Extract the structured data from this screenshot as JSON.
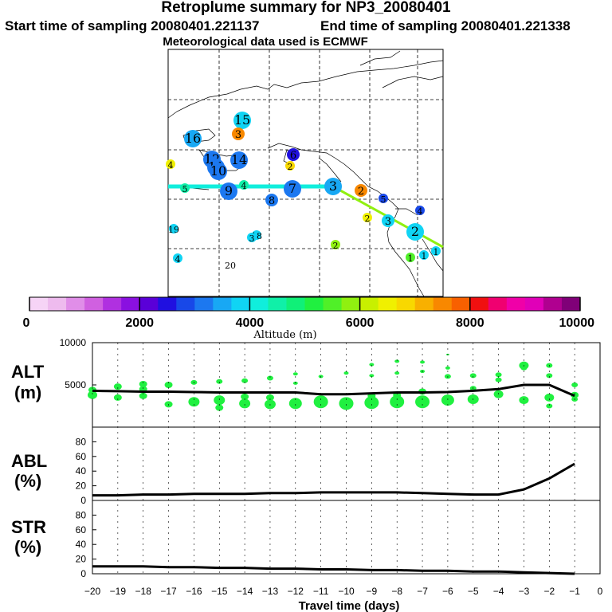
{
  "header": {
    "title": "Retroplume summary for NP3_20080401",
    "start_label": "Start time of sampling 20080401.221137",
    "end_label": "End time of sampling 20080401.221338",
    "met_label": "Meteorological data used is ECMWF"
  },
  "colorbar": {
    "label": "Altitude (m)",
    "ticks": [
      "0",
      "2000",
      "4000",
      "6000",
      "8000",
      "10000"
    ],
    "colors": [
      "#f6d4f6",
      "#eebbee",
      "#e08ee8",
      "#d060e0",
      "#b030e0",
      "#8a10e0",
      "#5a00d8",
      "#2010e0",
      "#1848e8",
      "#1c78f0",
      "#18a8f4",
      "#10d4f4",
      "#10eedc",
      "#10f0a8",
      "#10f078",
      "#20f040",
      "#50f028",
      "#90f010",
      "#c8f000",
      "#f0f000",
      "#f8d800",
      "#f8b000",
      "#f88800",
      "#f86000",
      "#f01010",
      "#f00070",
      "#f000a8",
      "#e000b8",
      "#b00090",
      "#800078"
    ]
  },
  "map": {
    "markers": [
      {
        "lab": "15",
        "size": "large",
        "color": "#10d4f4"
      },
      {
        "lab": "3",
        "size": "medium",
        "color": "#f88800"
      },
      {
        "lab": "16",
        "size": "large",
        "color": "#18a8f4"
      },
      {
        "lab": "4",
        "size": "small",
        "color": "#f0f000"
      },
      {
        "lab": "12",
        "size": "large",
        "color": "#1c78f0"
      },
      {
        "lab": "11",
        "size": "large",
        "color": "#1c78f0"
      },
      {
        "lab": "14",
        "size": "large",
        "color": "#1c78f0"
      },
      {
        "lab": "10",
        "size": "large",
        "color": "#1c78f0"
      },
      {
        "lab": "6",
        "size": "medium",
        "color": "#2010e0"
      },
      {
        "lab": "2",
        "size": "small",
        "color": "#f8d800"
      },
      {
        "lab": "5",
        "size": "small",
        "color": "#10f0a8"
      },
      {
        "lab": "4",
        "size": "small",
        "color": "#10f0a8"
      },
      {
        "lab": "9",
        "size": "large",
        "color": "#1c78f0"
      },
      {
        "lab": "7",
        "size": "large",
        "color": "#1c78f0"
      },
      {
        "lab": "8",
        "size": "medium",
        "color": "#1c78f0"
      },
      {
        "lab": "3",
        "size": "large",
        "color": "#18a8f4"
      },
      {
        "lab": "2",
        "size": "medium",
        "color": "#f88800"
      },
      {
        "lab": "5",
        "size": "small",
        "color": "#1848e8"
      },
      {
        "lab": "4",
        "size": "small",
        "color": "#1848e8"
      },
      {
        "lab": "2",
        "size": "small",
        "color": "#f0f000"
      },
      {
        "lab": "3",
        "size": "medium",
        "color": "#10d4f4"
      },
      {
        "lab": "2",
        "size": "large",
        "color": "#10d4f4"
      },
      {
        "lab": "1",
        "size": "small",
        "color": "#10d4f4"
      },
      {
        "lab": "1",
        "size": "small",
        "color": "#10d4f4"
      },
      {
        "lab": "1",
        "size": "small",
        "color": "#50f028"
      },
      {
        "lab": "19",
        "size": "small",
        "color": "#10d4f4"
      },
      {
        "lab": "18",
        "size": "small",
        "color": "#10d4f4"
      },
      {
        "lab": "3",
        "size": "small",
        "color": "#10d4f4"
      },
      {
        "lab": "2",
        "size": "small",
        "color": "#90f010"
      },
      {
        "lab": "4",
        "size": "small",
        "color": "#10d4f4"
      },
      {
        "lab": "20",
        "size": "none",
        "color": "#10d4f4"
      }
    ]
  },
  "panels": {
    "alt": {
      "line1": "ALT",
      "line2": "(m)",
      "ticks": [
        "10000",
        "5000"
      ]
    },
    "abl": {
      "line1": "ABL",
      "line2": "(%)",
      "ticks": [
        "80",
        "60",
        "40",
        "20",
        "0"
      ]
    },
    "str": {
      "line1": "STR",
      "line2": "(%)",
      "ticks": [
        "80",
        "60",
        "40",
        "20",
        "0"
      ]
    },
    "xticks": [
      "−20",
      "−19",
      "−18",
      "−17",
      "−16",
      "−15",
      "−14",
      "−13",
      "−12",
      "−11",
      "−10",
      "−9",
      "−8",
      "−7",
      "−6",
      "−5",
      "−4",
      "−3",
      "−2",
      "−1",
      "0"
    ],
    "xlabel": "Travel time (days)"
  },
  "chart_data": [
    {
      "type": "line",
      "title": "ALT",
      "ylabel": "(m)",
      "xlabel": "Travel time (days)",
      "x": [
        -20,
        -19,
        -18,
        -17,
        -16,
        -15,
        -14,
        -13,
        -12,
        -11,
        -10,
        -9,
        -8,
        -7,
        -6,
        -5,
        -4,
        -3,
        -2,
        -1
      ],
      "values": [
        4300,
        4250,
        4200,
        4200,
        4150,
        4100,
        4100,
        4100,
        4100,
        3900,
        3900,
        4000,
        4100,
        4100,
        4150,
        4300,
        4500,
        5000,
        5000,
        3700
      ],
      "ylim": [
        0,
        10000
      ],
      "xlim": [
        -20,
        0
      ],
      "scatter_color": "#20f040",
      "scatter": [
        {
          "x": -20,
          "y": 3800,
          "s": 5
        },
        {
          "x": -20,
          "y": 4400,
          "s": 4
        },
        {
          "x": -19,
          "y": 3500,
          "s": 4
        },
        {
          "x": -19,
          "y": 4800,
          "s": 4
        },
        {
          "x": -18,
          "y": 3700,
          "s": 4
        },
        {
          "x": -18,
          "y": 4500,
          "s": 4
        },
        {
          "x": -18,
          "y": 5100,
          "s": 4
        },
        {
          "x": -17,
          "y": 2700,
          "s": 4
        },
        {
          "x": -17,
          "y": 5000,
          "s": 4
        },
        {
          "x": -16,
          "y": 3000,
          "s": 6
        },
        {
          "x": -16,
          "y": 5300,
          "s": 3
        },
        {
          "x": -15,
          "y": 3200,
          "s": 6
        },
        {
          "x": -15,
          "y": 2300,
          "s": 4
        },
        {
          "x": -15,
          "y": 5400,
          "s": 3
        },
        {
          "x": -14,
          "y": 2800,
          "s": 6
        },
        {
          "x": -14,
          "y": 3600,
          "s": 4
        },
        {
          "x": -14,
          "y": 5500,
          "s": 3
        },
        {
          "x": -13,
          "y": 2700,
          "s": 6
        },
        {
          "x": -13,
          "y": 3500,
          "s": 4
        },
        {
          "x": -13,
          "y": 5800,
          "s": 3
        },
        {
          "x": -12,
          "y": 2800,
          "s": 7
        },
        {
          "x": -12,
          "y": 5200,
          "s": 2
        },
        {
          "x": -12,
          "y": 6300,
          "s": 2
        },
        {
          "x": -11,
          "y": 3000,
          "s": 8
        },
        {
          "x": -11,
          "y": 6000,
          "s": 2
        },
        {
          "x": -10,
          "y": 2800,
          "s": 8
        },
        {
          "x": -10,
          "y": 6400,
          "s": 2
        },
        {
          "x": -9,
          "y": 2900,
          "s": 8
        },
        {
          "x": -9,
          "y": 3700,
          "s": 4
        },
        {
          "x": -9,
          "y": 6100,
          "s": 2
        },
        {
          "x": -9,
          "y": 7400,
          "s": 2
        },
        {
          "x": -8,
          "y": 3000,
          "s": 8
        },
        {
          "x": -8,
          "y": 3800,
          "s": 4
        },
        {
          "x": -8,
          "y": 6400,
          "s": 2
        },
        {
          "x": -8,
          "y": 7800,
          "s": 2
        },
        {
          "x": -7,
          "y": 3000,
          "s": 8
        },
        {
          "x": -7,
          "y": 4200,
          "s": 4
        },
        {
          "x": -7,
          "y": 6600,
          "s": 2
        },
        {
          "x": -7,
          "y": 7700,
          "s": 2
        },
        {
          "x": -6,
          "y": 3200,
          "s": 7
        },
        {
          "x": -6,
          "y": 6000,
          "s": 3
        },
        {
          "x": -6,
          "y": 7000,
          "s": 2
        },
        {
          "x": -6,
          "y": 8600,
          "s": 1
        },
        {
          "x": -5,
          "y": 3300,
          "s": 6
        },
        {
          "x": -5,
          "y": 4600,
          "s": 3
        },
        {
          "x": -5,
          "y": 6100,
          "s": 3
        },
        {
          "x": -4,
          "y": 3900,
          "s": 5
        },
        {
          "x": -4,
          "y": 5600,
          "s": 3
        },
        {
          "x": -4,
          "y": 6200,
          "s": 3
        },
        {
          "x": -3,
          "y": 3200,
          "s": 5
        },
        {
          "x": -3,
          "y": 7300,
          "s": 5
        },
        {
          "x": -3,
          "y": 7000,
          "s": 3
        },
        {
          "x": -2,
          "y": 3500,
          "s": 5
        },
        {
          "x": -2,
          "y": 2500,
          "s": 3
        },
        {
          "x": -2,
          "y": 7300,
          "s": 3
        },
        {
          "x": -2,
          "y": 6100,
          "s": 3
        },
        {
          "x": -1,
          "y": 3800,
          "s": 4
        },
        {
          "x": -1,
          "y": 3300,
          "s": 3
        },
        {
          "x": -1,
          "y": 5000,
          "s": 3
        }
      ]
    },
    {
      "type": "line",
      "title": "ABL",
      "ylabel": "(%)",
      "xlabel": "Travel time (days)",
      "x": [
        -20,
        -19,
        -18,
        -17,
        -16,
        -15,
        -14,
        -13,
        -12,
        -11,
        -10,
        -9,
        -8,
        -7,
        -6,
        -5,
        -4,
        -3,
        -2,
        -1
      ],
      "values": [
        7,
        7,
        8,
        8,
        9,
        9,
        9,
        10,
        10,
        11,
        11,
        11,
        11,
        10,
        9,
        8,
        8,
        15,
        30,
        50
      ],
      "ylim": [
        0,
        100
      ],
      "xlim": [
        -20,
        0
      ]
    },
    {
      "type": "line",
      "title": "STR",
      "ylabel": "(%)",
      "xlabel": "Travel time (days)",
      "x": [
        -20,
        -19,
        -18,
        -17,
        -16,
        -15,
        -14,
        -13,
        -12,
        -11,
        -10,
        -9,
        -8,
        -7,
        -6,
        -5,
        -4,
        -3,
        -2,
        -1
      ],
      "values": [
        10,
        10,
        10,
        9,
        9,
        8,
        8,
        7,
        7,
        6,
        6,
        5,
        5,
        4,
        4,
        3,
        3,
        2,
        1,
        0
      ],
      "ylim": [
        0,
        100
      ],
      "xlim": [
        -20,
        0
      ]
    }
  ]
}
